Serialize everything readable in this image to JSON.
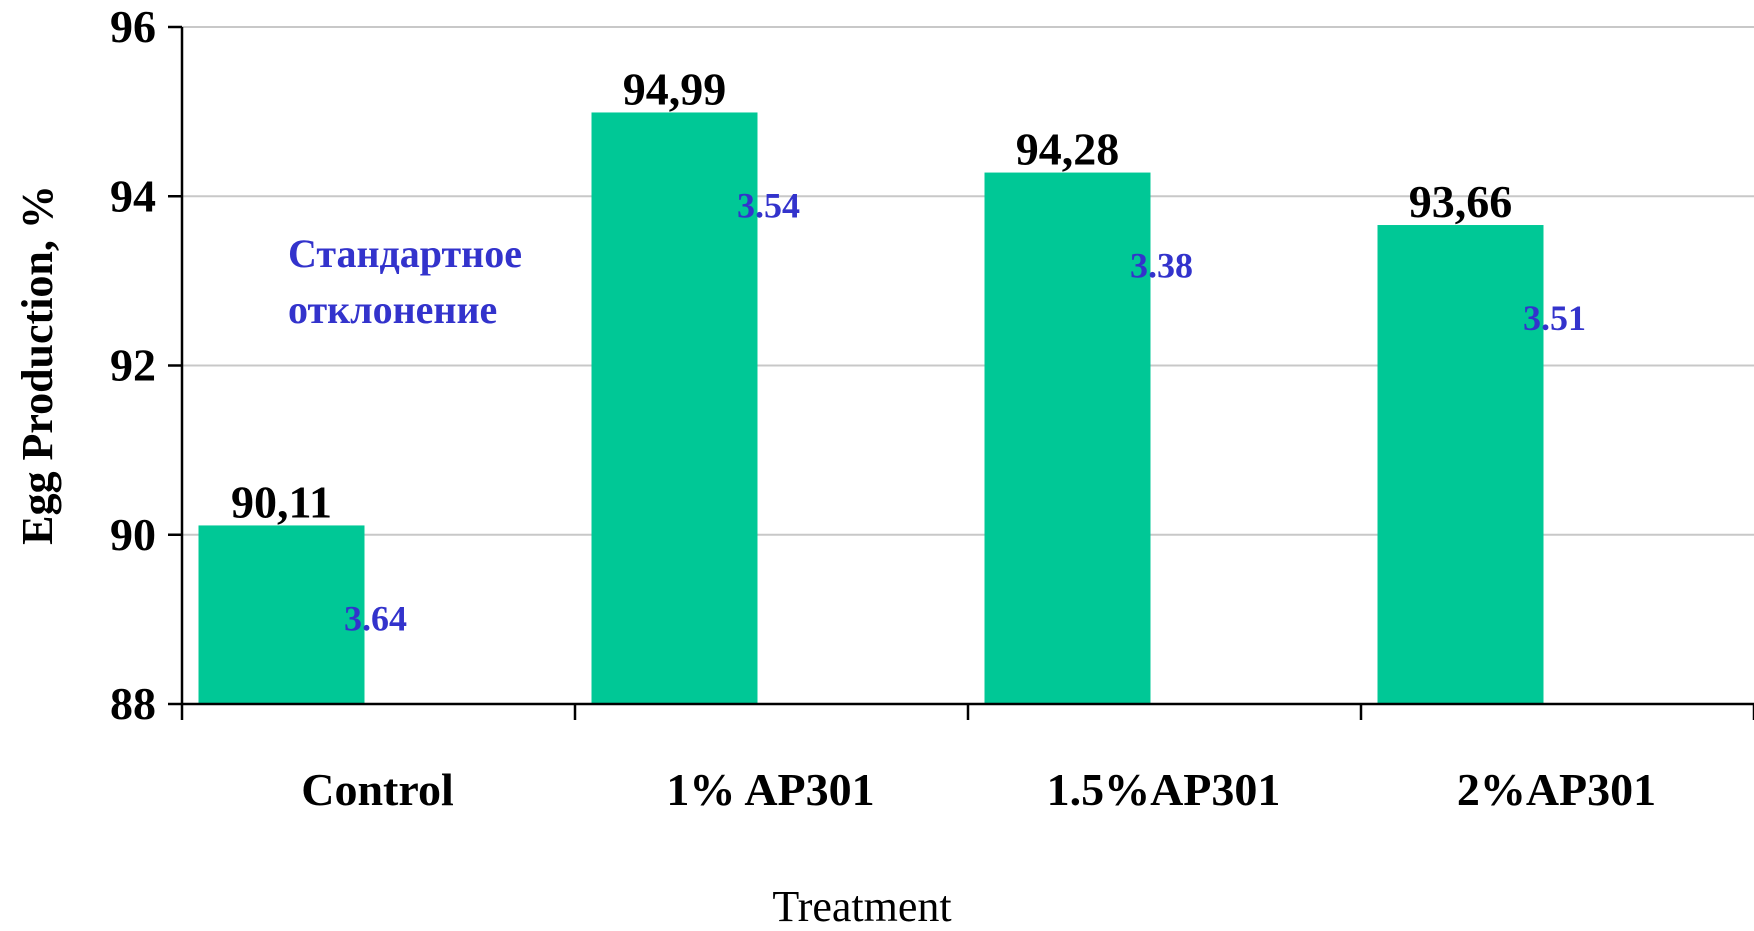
{
  "chart_data": {
    "type": "bar",
    "categories": [
      "Control",
      "1% AP301",
      "1.5%AP301",
      "2%AP301"
    ],
    "values": [
      90.11,
      94.99,
      94.28,
      93.66
    ],
    "value_labels": [
      "90,11",
      "94,99",
      "94,28",
      "93,66"
    ],
    "std_dev": [
      "3.64",
      "3.54",
      "3.38",
      "3.51"
    ],
    "xlabel": "Treatment",
    "ylabel": "Egg Production, %",
    "ylim": [
      88,
      96
    ],
    "yticks": [
      "88",
      "90",
      "92",
      "94",
      "96"
    ],
    "annotation": [
      "Стандартное",
      "отклонение"
    ],
    "grid": true,
    "colors": {
      "bar": "#00C896",
      "std_dev_text": "#3333CC",
      "grid": "#C8C8C8",
      "axis": "#000000"
    }
  }
}
